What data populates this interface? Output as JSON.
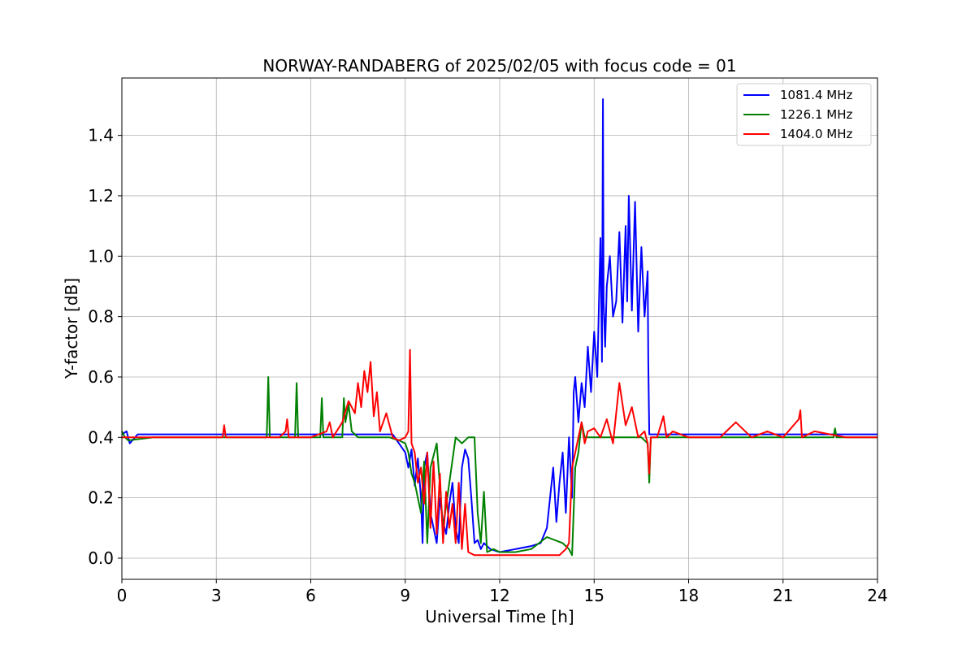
{
  "chart_data": {
    "type": "line",
    "title": "NORWAY-RANDABERG of 2025/02/05 with focus code = 01",
    "xlabel": "Universal Time [h]",
    "ylabel": "Y-factor [dB]",
    "xlim": [
      0,
      24
    ],
    "ylim": [
      -0.07,
      1.59
    ],
    "xticks": [
      0,
      3,
      6,
      9,
      12,
      15,
      18,
      21,
      24
    ],
    "xtick_labels": [
      "0",
      "3",
      "6",
      "9",
      "12",
      "15",
      "18",
      "21",
      "24"
    ],
    "yticks": [
      0.0,
      0.2,
      0.4,
      0.6,
      0.8,
      1.0,
      1.2,
      1.4
    ],
    "ytick_labels": [
      "0.0",
      "0.2",
      "0.4",
      "0.6",
      "0.8",
      "1.0",
      "1.2",
      "1.4"
    ],
    "grid": true,
    "legend_position": "top-right",
    "series": [
      {
        "name": "1081.4 MHz",
        "color": "#0000ff",
        "x": [
          0,
          0.15,
          0.25,
          0.5,
          1,
          2,
          3,
          4,
          5,
          6,
          7,
          8,
          8.6,
          8.8,
          9.0,
          9.1,
          9.2,
          9.3,
          9.4,
          9.5,
          9.55,
          9.6,
          9.7,
          9.8,
          9.9,
          10.0,
          10.1,
          10.2,
          10.3,
          10.4,
          10.5,
          10.6,
          10.7,
          10.8,
          10.9,
          11.0,
          11.1,
          11.2,
          11.3,
          11.4,
          11.5,
          11.7,
          12.0,
          12.5,
          13.0,
          13.3,
          13.5,
          13.6,
          13.7,
          13.8,
          13.9,
          14.0,
          14.1,
          14.2,
          14.3,
          14.35,
          14.4,
          14.5,
          14.6,
          14.7,
          14.8,
          14.9,
          15.0,
          15.1,
          15.2,
          15.25,
          15.28,
          15.3,
          15.35,
          15.4,
          15.5,
          15.6,
          15.7,
          15.8,
          15.9,
          16.0,
          16.05,
          16.1,
          16.2,
          16.3,
          16.4,
          16.5,
          16.6,
          16.7,
          16.72,
          16.75,
          16.8,
          17,
          18,
          19,
          20,
          21,
          22,
          23,
          24
        ],
        "y": [
          0.41,
          0.42,
          0.38,
          0.41,
          0.41,
          0.41,
          0.41,
          0.41,
          0.41,
          0.41,
          0.41,
          0.41,
          0.41,
          0.38,
          0.35,
          0.3,
          0.36,
          0.24,
          0.33,
          0.2,
          0.05,
          0.3,
          0.35,
          0.15,
          0.1,
          0.05,
          0.2,
          0.12,
          0.08,
          0.18,
          0.25,
          0.1,
          0.05,
          0.3,
          0.36,
          0.33,
          0.2,
          0.05,
          0.06,
          0.03,
          0.05,
          0.03,
          0.02,
          0.03,
          0.04,
          0.05,
          0.1,
          0.2,
          0.3,
          0.12,
          0.25,
          0.35,
          0.15,
          0.4,
          0.2,
          0.55,
          0.6,
          0.45,
          0.58,
          0.5,
          0.7,
          0.55,
          0.75,
          0.6,
          1.06,
          0.65,
          1.52,
          0.85,
          0.7,
          0.9,
          1.0,
          0.8,
          0.85,
          1.08,
          0.78,
          1.1,
          0.85,
          1.2,
          0.82,
          1.18,
          0.75,
          1.03,
          0.8,
          0.95,
          0.65,
          0.41,
          0.41,
          0.41,
          0.41,
          0.41,
          0.41,
          0.41,
          0.41,
          0.41,
          0.41
        ]
      },
      {
        "name": "1226.1 MHz",
        "color": "#008000",
        "x": [
          0,
          0.1,
          0.2,
          1,
          2,
          3,
          4,
          4.6,
          4.65,
          4.7,
          5,
          5.5,
          5.55,
          5.6,
          6,
          6.3,
          6.35,
          6.4,
          7.0,
          7.05,
          7.1,
          7.2,
          7.3,
          7.5,
          8,
          8.5,
          8.8,
          9.0,
          9.1,
          9.2,
          9.3,
          9.5,
          9.6,
          9.7,
          9.8,
          10.0,
          10.2,
          10.4,
          10.6,
          10.8,
          11.0,
          11.2,
          11.3,
          11.4,
          11.5,
          11.6,
          11.8,
          12.0,
          12.5,
          13.0,
          13.5,
          14.0,
          14.2,
          14.3,
          14.4,
          14.5,
          14.6,
          14.7,
          15.0,
          15.5,
          16.0,
          16.5,
          16.7,
          16.75,
          16.8,
          17.0,
          18.0,
          20.0,
          21.0,
          22.0,
          22.6,
          22.65,
          22.7,
          23.0,
          24.0
        ],
        "y": [
          0.42,
          0.4,
          0.39,
          0.4,
          0.4,
          0.4,
          0.4,
          0.4,
          0.6,
          0.4,
          0.4,
          0.4,
          0.58,
          0.4,
          0.4,
          0.4,
          0.53,
          0.4,
          0.4,
          0.53,
          0.45,
          0.51,
          0.42,
          0.4,
          0.4,
          0.4,
          0.39,
          0.38,
          0.35,
          0.28,
          0.25,
          0.15,
          0.32,
          0.05,
          0.3,
          0.38,
          0.1,
          0.25,
          0.4,
          0.38,
          0.4,
          0.4,
          0.15,
          0.05,
          0.22,
          0.02,
          0.03,
          0.02,
          0.02,
          0.03,
          0.07,
          0.05,
          0.03,
          0.01,
          0.3,
          0.35,
          0.45,
          0.4,
          0.4,
          0.4,
          0.4,
          0.4,
          0.38,
          0.25,
          0.4,
          0.4,
          0.4,
          0.4,
          0.4,
          0.4,
          0.4,
          0.43,
          0.4,
          0.4,
          0.4
        ]
      },
      {
        "name": "1404.0 MHz",
        "color": "#ff0000",
        "x": [
          0,
          1,
          2,
          3,
          3.2,
          3.25,
          3.3,
          4,
          5,
          5.2,
          5.25,
          5.3,
          6,
          6.5,
          6.6,
          6.7,
          7.0,
          7.2,
          7.4,
          7.5,
          7.6,
          7.7,
          7.8,
          7.9,
          8.0,
          8.1,
          8.2,
          8.4,
          8.6,
          8.8,
          9.0,
          9.1,
          9.15,
          9.2,
          9.3,
          9.4,
          9.5,
          9.6,
          9.7,
          9.8,
          9.9,
          10.0,
          10.1,
          10.2,
          10.3,
          10.4,
          10.5,
          10.6,
          10.7,
          10.8,
          10.9,
          11.0,
          11.2,
          11.5,
          12.0,
          12.5,
          13.0,
          13.5,
          13.8,
          13.9,
          14.0,
          14.1,
          14.2,
          14.3,
          14.4,
          14.5,
          14.6,
          14.7,
          14.8,
          15.0,
          15.2,
          15.4,
          15.6,
          15.8,
          16.0,
          16.2,
          16.4,
          16.6,
          16.7,
          16.75,
          16.8,
          17.0,
          17.2,
          17.3,
          17.5,
          18.0,
          19.0,
          19.5,
          20.0,
          20.5,
          21.0,
          21.5,
          21.55,
          21.6,
          22.0,
          23.0,
          24.0
        ],
        "y": [
          0.4,
          0.4,
          0.4,
          0.4,
          0.4,
          0.44,
          0.4,
          0.4,
          0.4,
          0.42,
          0.46,
          0.4,
          0.4,
          0.42,
          0.45,
          0.4,
          0.45,
          0.52,
          0.48,
          0.58,
          0.5,
          0.62,
          0.55,
          0.65,
          0.47,
          0.55,
          0.42,
          0.48,
          0.4,
          0.39,
          0.4,
          0.42,
          0.69,
          0.38,
          0.35,
          0.25,
          0.3,
          0.18,
          0.35,
          0.1,
          0.32,
          0.08,
          0.28,
          0.05,
          0.22,
          0.1,
          0.18,
          0.05,
          0.25,
          0.03,
          0.18,
          0.02,
          0.01,
          0.01,
          0.01,
          0.01,
          0.01,
          0.01,
          0.01,
          0.01,
          0.02,
          0.03,
          0.05,
          0.3,
          0.35,
          0.4,
          0.45,
          0.38,
          0.42,
          0.43,
          0.4,
          0.46,
          0.38,
          0.58,
          0.44,
          0.5,
          0.4,
          0.42,
          0.38,
          0.28,
          0.4,
          0.4,
          0.47,
          0.4,
          0.42,
          0.4,
          0.4,
          0.45,
          0.4,
          0.42,
          0.4,
          0.46,
          0.49,
          0.4,
          0.42,
          0.4,
          0.4
        ]
      }
    ]
  }
}
